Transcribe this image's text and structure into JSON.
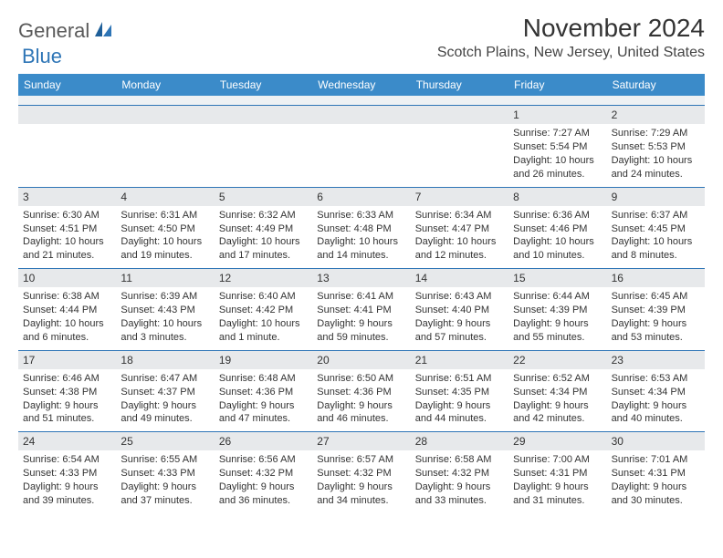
{
  "logo": {
    "word1": "General",
    "word2": "Blue"
  },
  "header": {
    "month": "November 2024",
    "location": "Scotch Plains, New Jersey, United States"
  },
  "colors": {
    "header_bar": "#3b8bc9",
    "rule": "#2e75b6",
    "daynum_bg": "#e7e9eb",
    "text": "#333333",
    "logo_gray": "#5a5a5a",
    "logo_blue": "#2e75b6",
    "background": "#ffffff"
  },
  "weekdays": [
    "Sunday",
    "Monday",
    "Tuesday",
    "Wednesday",
    "Thursday",
    "Friday",
    "Saturday"
  ],
  "weeks": [
    [
      null,
      null,
      null,
      null,
      null,
      {
        "n": "1",
        "sunrise": "Sunrise: 7:27 AM",
        "sunset": "Sunset: 5:54 PM",
        "d1": "Daylight: 10 hours",
        "d2": "and 26 minutes."
      },
      {
        "n": "2",
        "sunrise": "Sunrise: 7:29 AM",
        "sunset": "Sunset: 5:53 PM",
        "d1": "Daylight: 10 hours",
        "d2": "and 24 minutes."
      }
    ],
    [
      {
        "n": "3",
        "sunrise": "Sunrise: 6:30 AM",
        "sunset": "Sunset: 4:51 PM",
        "d1": "Daylight: 10 hours",
        "d2": "and 21 minutes."
      },
      {
        "n": "4",
        "sunrise": "Sunrise: 6:31 AM",
        "sunset": "Sunset: 4:50 PM",
        "d1": "Daylight: 10 hours",
        "d2": "and 19 minutes."
      },
      {
        "n": "5",
        "sunrise": "Sunrise: 6:32 AM",
        "sunset": "Sunset: 4:49 PM",
        "d1": "Daylight: 10 hours",
        "d2": "and 17 minutes."
      },
      {
        "n": "6",
        "sunrise": "Sunrise: 6:33 AM",
        "sunset": "Sunset: 4:48 PM",
        "d1": "Daylight: 10 hours",
        "d2": "and 14 minutes."
      },
      {
        "n": "7",
        "sunrise": "Sunrise: 6:34 AM",
        "sunset": "Sunset: 4:47 PM",
        "d1": "Daylight: 10 hours",
        "d2": "and 12 minutes."
      },
      {
        "n": "8",
        "sunrise": "Sunrise: 6:36 AM",
        "sunset": "Sunset: 4:46 PM",
        "d1": "Daylight: 10 hours",
        "d2": "and 10 minutes."
      },
      {
        "n": "9",
        "sunrise": "Sunrise: 6:37 AM",
        "sunset": "Sunset: 4:45 PM",
        "d1": "Daylight: 10 hours",
        "d2": "and 8 minutes."
      }
    ],
    [
      {
        "n": "10",
        "sunrise": "Sunrise: 6:38 AM",
        "sunset": "Sunset: 4:44 PM",
        "d1": "Daylight: 10 hours",
        "d2": "and 6 minutes."
      },
      {
        "n": "11",
        "sunrise": "Sunrise: 6:39 AM",
        "sunset": "Sunset: 4:43 PM",
        "d1": "Daylight: 10 hours",
        "d2": "and 3 minutes."
      },
      {
        "n": "12",
        "sunrise": "Sunrise: 6:40 AM",
        "sunset": "Sunset: 4:42 PM",
        "d1": "Daylight: 10 hours",
        "d2": "and 1 minute."
      },
      {
        "n": "13",
        "sunrise": "Sunrise: 6:41 AM",
        "sunset": "Sunset: 4:41 PM",
        "d1": "Daylight: 9 hours",
        "d2": "and 59 minutes."
      },
      {
        "n": "14",
        "sunrise": "Sunrise: 6:43 AM",
        "sunset": "Sunset: 4:40 PM",
        "d1": "Daylight: 9 hours",
        "d2": "and 57 minutes."
      },
      {
        "n": "15",
        "sunrise": "Sunrise: 6:44 AM",
        "sunset": "Sunset: 4:39 PM",
        "d1": "Daylight: 9 hours",
        "d2": "and 55 minutes."
      },
      {
        "n": "16",
        "sunrise": "Sunrise: 6:45 AM",
        "sunset": "Sunset: 4:39 PM",
        "d1": "Daylight: 9 hours",
        "d2": "and 53 minutes."
      }
    ],
    [
      {
        "n": "17",
        "sunrise": "Sunrise: 6:46 AM",
        "sunset": "Sunset: 4:38 PM",
        "d1": "Daylight: 9 hours",
        "d2": "and 51 minutes."
      },
      {
        "n": "18",
        "sunrise": "Sunrise: 6:47 AM",
        "sunset": "Sunset: 4:37 PM",
        "d1": "Daylight: 9 hours",
        "d2": "and 49 minutes."
      },
      {
        "n": "19",
        "sunrise": "Sunrise: 6:48 AM",
        "sunset": "Sunset: 4:36 PM",
        "d1": "Daylight: 9 hours",
        "d2": "and 47 minutes."
      },
      {
        "n": "20",
        "sunrise": "Sunrise: 6:50 AM",
        "sunset": "Sunset: 4:36 PM",
        "d1": "Daylight: 9 hours",
        "d2": "and 46 minutes."
      },
      {
        "n": "21",
        "sunrise": "Sunrise: 6:51 AM",
        "sunset": "Sunset: 4:35 PM",
        "d1": "Daylight: 9 hours",
        "d2": "and 44 minutes."
      },
      {
        "n": "22",
        "sunrise": "Sunrise: 6:52 AM",
        "sunset": "Sunset: 4:34 PM",
        "d1": "Daylight: 9 hours",
        "d2": "and 42 minutes."
      },
      {
        "n": "23",
        "sunrise": "Sunrise: 6:53 AM",
        "sunset": "Sunset: 4:34 PM",
        "d1": "Daylight: 9 hours",
        "d2": "and 40 minutes."
      }
    ],
    [
      {
        "n": "24",
        "sunrise": "Sunrise: 6:54 AM",
        "sunset": "Sunset: 4:33 PM",
        "d1": "Daylight: 9 hours",
        "d2": "and 39 minutes."
      },
      {
        "n": "25",
        "sunrise": "Sunrise: 6:55 AM",
        "sunset": "Sunset: 4:33 PM",
        "d1": "Daylight: 9 hours",
        "d2": "and 37 minutes."
      },
      {
        "n": "26",
        "sunrise": "Sunrise: 6:56 AM",
        "sunset": "Sunset: 4:32 PM",
        "d1": "Daylight: 9 hours",
        "d2": "and 36 minutes."
      },
      {
        "n": "27",
        "sunrise": "Sunrise: 6:57 AM",
        "sunset": "Sunset: 4:32 PM",
        "d1": "Daylight: 9 hours",
        "d2": "and 34 minutes."
      },
      {
        "n": "28",
        "sunrise": "Sunrise: 6:58 AM",
        "sunset": "Sunset: 4:32 PM",
        "d1": "Daylight: 9 hours",
        "d2": "and 33 minutes."
      },
      {
        "n": "29",
        "sunrise": "Sunrise: 7:00 AM",
        "sunset": "Sunset: 4:31 PM",
        "d1": "Daylight: 9 hours",
        "d2": "and 31 minutes."
      },
      {
        "n": "30",
        "sunrise": "Sunrise: 7:01 AM",
        "sunset": "Sunset: 4:31 PM",
        "d1": "Daylight: 9 hours",
        "d2": "and 30 minutes."
      }
    ]
  ]
}
